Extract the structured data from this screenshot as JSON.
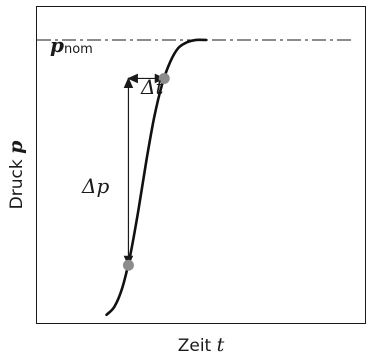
{
  "chart_data": {
    "type": "line",
    "xlabel": {
      "text": "Zeit ",
      "symbol": "t"
    },
    "ylabel": {
      "text": "Druck ",
      "symbol": "p"
    },
    "reference_line": {
      "symbol": "p",
      "subscript": "nom",
      "style": "dash-dot"
    },
    "annotations": {
      "delta_t": {
        "symbol": "Δt"
      },
      "delta_p": {
        "symbol": "Δp"
      }
    },
    "series": [
      {
        "values_x": [
          0.0,
          0.08,
          0.16,
          0.24,
          0.32,
          0.4,
          0.48,
          0.56,
          0.64,
          0.72,
          0.8,
          0.9,
          1.0
        ],
        "values_y": [
          0.0,
          0.03,
          0.1,
          0.22,
          0.38,
          0.56,
          0.72,
          0.84,
          0.92,
          0.97,
          0.99,
          1.0,
          1.0
        ]
      }
    ],
    "xlim": [
      -0.7,
      2.6
    ],
    "ylim": [
      -0.03,
      1.12
    ],
    "nominal_level": 1.0,
    "markers": [
      {
        "x": 0.22,
        "y": 0.18
      },
      {
        "x": 0.58,
        "y": 0.86
      }
    ],
    "colors": {
      "curve": "#111111",
      "axes": "#1a1a1a",
      "marker": "#8c8c8c"
    },
    "grid": false
  }
}
